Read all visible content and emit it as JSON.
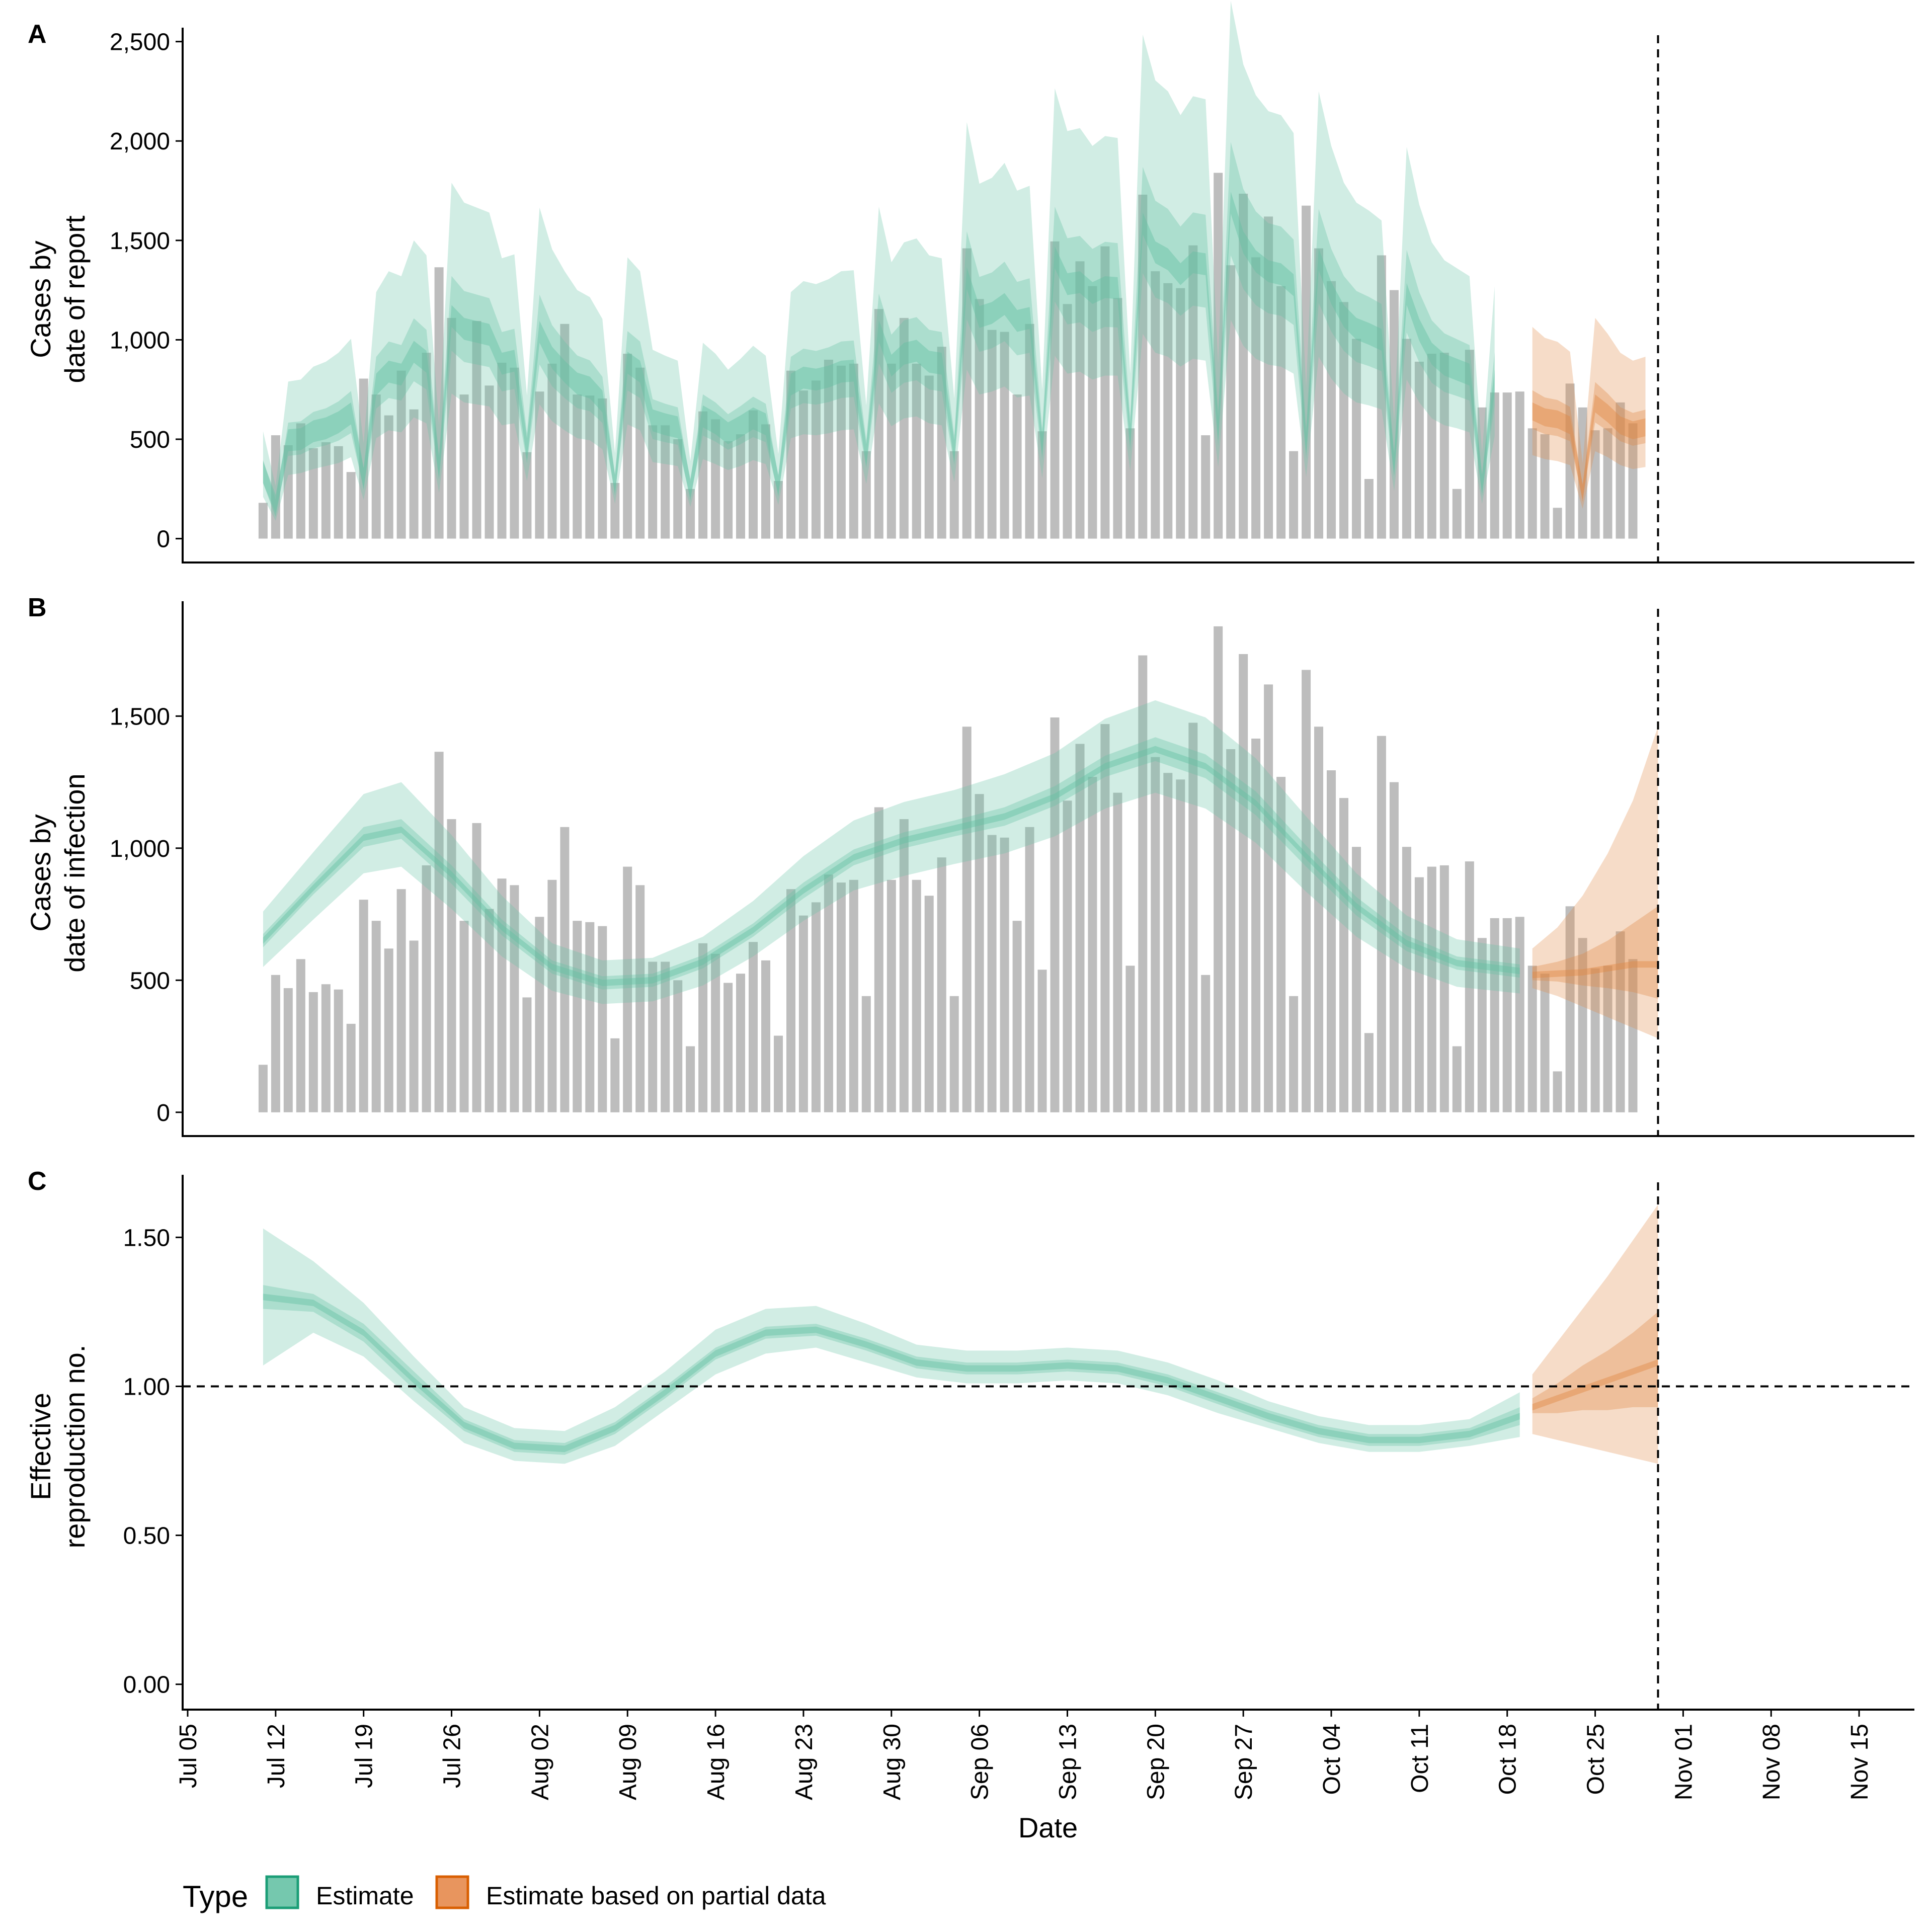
{
  "chart_data": [
    {
      "panel": "A",
      "type": "bar",
      "ylabel": "Cases by\ndate of report",
      "ylim": [
        -120,
        2570
      ],
      "yticks": [
        0,
        500,
        1000,
        1500,
        2000,
        2500
      ],
      "yticklabels": [
        "0",
        "500",
        "1,000",
        "1,500",
        "2,000",
        "2,500"
      ],
      "xlim": [
        "2020-07-05",
        "2020-11-19"
      ],
      "start_date": "2020-07-11",
      "observed": [
        180,
        520,
        470,
        580,
        455,
        485,
        465,
        335,
        805,
        725,
        620,
        845,
        650,
        935,
        1365,
        1110,
        725,
        1095,
        770,
        885,
        860,
        435,
        740,
        880,
        1080,
        725,
        720,
        705,
        280,
        930,
        860,
        570,
        570,
        500,
        250,
        640,
        600,
        490,
        525,
        645,
        575,
        290,
        845,
        745,
        795,
        900,
        870,
        880,
        440,
        1155,
        880,
        1110,
        880,
        820,
        965,
        440,
        1460,
        1205,
        1050,
        1040,
        725,
        1080,
        540,
        1495,
        1180,
        1395,
        1270,
        1470,
        1210,
        555,
        1730,
        1345,
        1285,
        1260,
        1475,
        520,
        1840,
        1375,
        1735,
        1415,
        1620,
        1270,
        440,
        1675,
        1460,
        1295,
        1190,
        1005,
        300,
        1425,
        1250,
        1005,
        890,
        930,
        935,
        250,
        950,
        660,
        735,
        735,
        740,
        555,
        525,
        155,
        780,
        660,
        545,
        555,
        685,
        580
      ],
      "estimate": {
        "start_date": "2020-07-11",
        "median": [
          335,
          165,
          495,
          500,
          540,
          555,
          585,
          630,
          300,
          775,
          840,
          825,
          940,
          890,
          355,
          1120,
          1055,
          1040,
          1025,
          880,
          895,
          450,
          1040,
          910,
          840,
          780,
          760,
          690,
          270,
          885,
          840,
          595,
          575,
          560,
          245,
          615,
          580,
          530,
          565,
          605,
          575,
          265,
          775,
          810,
          800,
          815,
          840,
          845,
          420,
          1045,
          870,
          930,
          945,
          890,
          880,
          440,
          1310,
          1115,
          1135,
          1180,
          1095,
          1110,
          470,
          1415,
          1280,
          1290,
          1235,
          1265,
          1260,
          520,
          1585,
          1440,
          1405,
          1330,
          1390,
          1380,
          550,
          1690,
          1490,
          1395,
          1345,
          1330,
          1275,
          475,
          1405,
          1235,
          1120,
          1055,
          1030,
          1000,
          370,
          1230,
          1050,
          930,
          875,
          850,
          825,
          270,
          795
        ],
        "lower_90": [
          210,
          90,
          320,
          330,
          350,
          365,
          380,
          410,
          195,
          505,
          545,
          535,
          610,
          580,
          230,
          730,
          685,
          675,
          665,
          570,
          580,
          290,
          675,
          590,
          545,
          505,
          495,
          450,
          175,
          575,
          545,
          385,
          375,
          365,
          160,
          400,
          375,
          345,
          365,
          395,
          375,
          170,
          505,
          525,
          520,
          530,
          545,
          550,
          275,
          680,
          565,
          605,
          615,
          580,
          570,
          285,
          850,
          725,
          740,
          765,
          710,
          720,
          305,
          920,
          830,
          840,
          800,
          820,
          820,
          340,
          1030,
          935,
          915,
          865,
          905,
          895,
          360,
          1100,
          970,
          905,
          875,
          865,
          830,
          310,
          915,
          805,
          730,
          685,
          670,
          650,
          240,
          800,
          685,
          605,
          570,
          555,
          535,
          175,
          515
        ],
        "upper_90": [
          540,
          265,
          790,
          800,
          865,
          890,
          935,
          1005,
          480,
          1240,
          1345,
          1320,
          1500,
          1425,
          570,
          1790,
          1690,
          1665,
          1640,
          1410,
          1430,
          720,
          1665,
          1455,
          1345,
          1250,
          1215,
          1105,
          430,
          1415,
          1345,
          950,
          920,
          895,
          390,
          985,
          930,
          850,
          905,
          970,
          920,
          425,
          1240,
          1295,
          1280,
          1305,
          1345,
          1350,
          670,
          1670,
          1390,
          1490,
          1510,
          1425,
          1410,
          705,
          2095,
          1785,
          1815,
          1890,
          1750,
          1775,
          750,
          2265,
          2050,
          2065,
          1975,
          2025,
          2015,
          830,
          2535,
          2305,
          2250,
          2130,
          2225,
          2210,
          880,
          2705,
          2385,
          2230,
          2150,
          2130,
          2040,
          760,
          2250,
          1975,
          1790,
          1690,
          1650,
          1600,
          590,
          1970,
          1680,
          1490,
          1400,
          1360,
          1320,
          430,
          1270
        ]
      },
      "partial_estimate": {
        "start_date": "2020-10-20",
        "median": [
          640,
          610,
          600,
          570,
          230,
          680,
          630,
          570,
          545,
          560
        ],
        "lower_90": [
          420,
          400,
          390,
          370,
          150,
          440,
          410,
          370,
          350,
          360
        ],
        "upper_90": [
          1065,
          1010,
          990,
          940,
          380,
          1110,
          1030,
          935,
          895,
          915
        ]
      },
      "vline_date": "2020-10-30"
    },
    {
      "panel": "B",
      "type": "bar",
      "ylabel": "Cases by\ndate of infection",
      "ylim": [
        -90,
        1935
      ],
      "yticks": [
        0,
        500,
        1000,
        1500
      ],
      "yticklabels": [
        "0",
        "500",
        "1,000",
        "1,500"
      ],
      "xlim": [
        "2020-07-05",
        "2020-11-19"
      ],
      "estimate_curve": {
        "dates": [
          "2020-07-11",
          "2020-07-15",
          "2020-07-19",
          "2020-07-22",
          "2020-07-26",
          "2020-07-30",
          "2020-08-03",
          "2020-08-07",
          "2020-08-11",
          "2020-08-15",
          "2020-08-19",
          "2020-08-23",
          "2020-08-27",
          "2020-08-31",
          "2020-09-04",
          "2020-09-08",
          "2020-09-12",
          "2020-09-16",
          "2020-09-20",
          "2020-09-24",
          "2020-09-28",
          "2020-10-02",
          "2020-10-06",
          "2020-10-10",
          "2020-10-14",
          "2020-10-19"
        ],
        "median": [
          650,
          850,
          1040,
          1070,
          900,
          700,
          550,
          490,
          500,
          570,
          690,
          840,
          965,
          1030,
          1075,
          1120,
          1195,
          1310,
          1375,
          1310,
          1170,
          970,
          780,
          640,
          565,
          535
        ],
        "lower_50": [
          625,
          825,
          1005,
          1035,
          865,
          670,
          525,
          465,
          475,
          545,
          665,
          810,
          935,
          1000,
          1045,
          1085,
          1160,
          1270,
          1330,
          1265,
          1125,
          930,
          745,
          610,
          540,
          510
        ],
        "upper_50": [
          675,
          875,
          1080,
          1110,
          935,
          730,
          575,
          515,
          525,
          595,
          715,
          870,
          995,
          1060,
          1105,
          1155,
          1235,
          1350,
          1420,
          1355,
          1215,
          1010,
          815,
          670,
          590,
          560
        ],
        "lower_90": [
          550,
          730,
          905,
          930,
          770,
          590,
          460,
          410,
          420,
          480,
          590,
          725,
          840,
          895,
          940,
          980,
          1045,
          1150,
          1210,
          1150,
          1020,
          835,
          665,
          545,
          475,
          450
        ],
        "upper_90": [
          760,
          985,
          1205,
          1250,
          1050,
          820,
          640,
          575,
          585,
          665,
          800,
          970,
          1105,
          1175,
          1220,
          1280,
          1360,
          1490,
          1560,
          1495,
          1340,
          1120,
          905,
          745,
          655,
          620
        ]
      },
      "partial_curve": {
        "dates": [
          "2020-10-20",
          "2020-10-22",
          "2020-10-24",
          "2020-10-26",
          "2020-10-28",
          "2020-10-30"
        ],
        "median": [
          520,
          525,
          530,
          545,
          560,
          560
        ],
        "lower_50": [
          500,
          495,
          480,
          470,
          455,
          430
        ],
        "upper_50": [
          550,
          570,
          600,
          650,
          715,
          780
        ],
        "lower_90": [
          470,
          440,
          400,
          360,
          320,
          280
        ],
        "upper_90": [
          620,
          700,
          820,
          980,
          1180,
          1460
        ]
      },
      "vline_date": "2020-10-30"
    },
    {
      "panel": "C",
      "type": "line",
      "ylabel": "Effective\nreproduction no.",
      "ylim": [
        -0.085,
        1.71
      ],
      "yticks": [
        0,
        0.5,
        1.0,
        1.5
      ],
      "yticklabels": [
        "0.00",
        "0.50",
        "1.00",
        "1.50"
      ],
      "xlim": [
        "2020-07-05",
        "2020-11-19"
      ],
      "hline": 1.0,
      "estimate_curve": {
        "dates": [
          "2020-07-11",
          "2020-07-15",
          "2020-07-19",
          "2020-07-23",
          "2020-07-27",
          "2020-07-31",
          "2020-08-04",
          "2020-08-08",
          "2020-08-12",
          "2020-08-16",
          "2020-08-20",
          "2020-08-24",
          "2020-08-28",
          "2020-09-01",
          "2020-09-05",
          "2020-09-09",
          "2020-09-13",
          "2020-09-17",
          "2020-09-21",
          "2020-09-25",
          "2020-09-29",
          "2020-10-03",
          "2020-10-07",
          "2020-10-11",
          "2020-10-15",
          "2020-10-19"
        ],
        "median": [
          1.3,
          1.28,
          1.18,
          1.02,
          0.87,
          0.8,
          0.79,
          0.86,
          0.98,
          1.11,
          1.18,
          1.19,
          1.14,
          1.08,
          1.06,
          1.06,
          1.07,
          1.06,
          1.02,
          0.96,
          0.9,
          0.85,
          0.82,
          0.82,
          0.84,
          0.9
        ],
        "lower_50": [
          1.26,
          1.25,
          1.15,
          0.99,
          0.85,
          0.78,
          0.77,
          0.84,
          0.96,
          1.09,
          1.16,
          1.17,
          1.12,
          1.06,
          1.04,
          1.04,
          1.05,
          1.04,
          1.0,
          0.94,
          0.88,
          0.83,
          0.8,
          0.8,
          0.82,
          0.87
        ],
        "upper_50": [
          1.34,
          1.31,
          1.21,
          1.05,
          0.89,
          0.82,
          0.81,
          0.88,
          1.0,
          1.13,
          1.2,
          1.21,
          1.16,
          1.1,
          1.08,
          1.08,
          1.09,
          1.08,
          1.04,
          0.98,
          0.92,
          0.87,
          0.84,
          0.84,
          0.86,
          0.93
        ],
        "lower_90": [
          1.07,
          1.18,
          1.1,
          0.95,
          0.81,
          0.75,
          0.74,
          0.8,
          0.92,
          1.04,
          1.11,
          1.13,
          1.08,
          1.03,
          1.01,
          1.01,
          1.02,
          1.01,
          0.97,
          0.91,
          0.86,
          0.81,
          0.78,
          0.78,
          0.8,
          0.83
        ],
        "upper_90": [
          1.53,
          1.42,
          1.28,
          1.1,
          0.93,
          0.86,
          0.85,
          0.93,
          1.05,
          1.19,
          1.26,
          1.27,
          1.21,
          1.14,
          1.12,
          1.12,
          1.13,
          1.12,
          1.08,
          1.02,
          0.95,
          0.9,
          0.87,
          0.87,
          0.89,
          0.98
        ]
      },
      "partial_curve": {
        "dates": [
          "2020-10-20",
          "2020-10-22",
          "2020-10-24",
          "2020-10-26",
          "2020-10-28",
          "2020-10-30"
        ],
        "median": [
          0.93,
          0.96,
          0.99,
          1.02,
          1.05,
          1.08
        ],
        "lower_50": [
          0.91,
          0.91,
          0.92,
          0.92,
          0.93,
          0.93
        ],
        "upper_50": [
          0.96,
          1.01,
          1.07,
          1.12,
          1.18,
          1.25
        ],
        "lower_90": [
          0.84,
          0.82,
          0.8,
          0.78,
          0.76,
          0.74
        ],
        "upper_90": [
          1.04,
          1.15,
          1.26,
          1.37,
          1.49,
          1.61
        ]
      },
      "vline_date": "2020-10-30"
    }
  ],
  "panels": {
    "a_tag": "A",
    "b_tag": "B",
    "c_tag": "C",
    "a_ylabel_1": "Cases by",
    "a_ylabel_2": "date of report",
    "b_ylabel_1": "Cases by",
    "b_ylabel_2": "date of infection",
    "c_ylabel_1": "Effective",
    "c_ylabel_2": "reproduction no."
  },
  "x_axis": {
    "title": "Date",
    "tick_dates": [
      "2020-07-05",
      "2020-07-12",
      "2020-07-19",
      "2020-07-26",
      "2020-08-02",
      "2020-08-09",
      "2020-08-16",
      "2020-08-23",
      "2020-08-30",
      "2020-09-06",
      "2020-09-13",
      "2020-09-20",
      "2020-09-27",
      "2020-10-04",
      "2020-10-11",
      "2020-10-18",
      "2020-10-25",
      "2020-11-01",
      "2020-11-08",
      "2020-11-15"
    ],
    "tick_labels": [
      "Jul 05",
      "Jul 12",
      "Jul 19",
      "Jul 26",
      "Aug 02",
      "Aug 09",
      "Aug 16",
      "Aug 23",
      "Aug 30",
      "Sep 06",
      "Sep 13",
      "Sep 20",
      "Sep 27",
      "Oct 04",
      "Oct 11",
      "Oct 18",
      "Oct 25",
      "Nov 01",
      "Nov 08",
      "Nov 15"
    ]
  },
  "legend": {
    "title": "Type",
    "items": [
      {
        "label": "Estimate",
        "color": "#66C2A5",
        "border": "#1B9E77"
      },
      {
        "label": "Estimate based on partial data",
        "color": "#E68A4C",
        "border": "#D95F02"
      }
    ]
  },
  "colors": {
    "bars": "#BDBDBD",
    "estimate": "#66C2A5",
    "partial": "#E08A48",
    "reference_line": "#000000"
  }
}
